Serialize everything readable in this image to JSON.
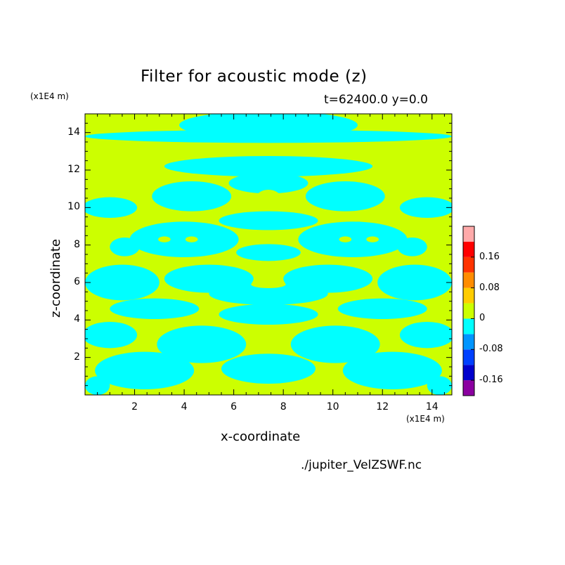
{
  "chart_data": {
    "type": "heatmap",
    "title": "Filter for acoustic mode (z)",
    "subtitle": "t=62400.0 y=0.0",
    "xlabel": "x-coordinate",
    "ylabel": "z-coordinate",
    "x_unit": "(x1E4 m)",
    "y_unit": "(x1E4 m)",
    "source_file": "./jupiter_VelZSWF.nc",
    "xlim": [
      0,
      14.8
    ],
    "ylim": [
      0,
      15
    ],
    "x_ticks": [
      2,
      4,
      6,
      8,
      10,
      12,
      14
    ],
    "y_ticks": [
      2,
      4,
      6,
      8,
      10,
      12,
      14
    ],
    "x_tick_labels": [
      "2",
      "4",
      "6",
      "8",
      "10",
      "12",
      "14"
    ],
    "y_tick_labels": [
      "2",
      "4",
      "6",
      "8",
      "10",
      "12",
      "14"
    ],
    "grid": false,
    "symmetry": "mirror about x=7.4",
    "colorbar": {
      "levels": [
        {
          "range": [
            -0.2,
            -0.16
          ],
          "color": "#8b00a0"
        },
        {
          "range": [
            -0.16,
            -0.12
          ],
          "color": "#0000cc"
        },
        {
          "range": [
            -0.12,
            -0.08
          ],
          "color": "#0040ff"
        },
        {
          "range": [
            -0.08,
            -0.04
          ],
          "color": "#0095ff"
        },
        {
          "range": [
            -0.04,
            0
          ],
          "color": "#00ffff"
        },
        {
          "range": [
            0,
            0.04
          ],
          "color": "#ccff00"
        },
        {
          "range": [
            0.04,
            0.08
          ],
          "color": "#ffcc00"
        },
        {
          "range": [
            0.08,
            0.12
          ],
          "color": "#ff8c00"
        },
        {
          "range": [
            0.12,
            0.16
          ],
          "color": "#ff3300"
        },
        {
          "range": [
            0.16,
            0.2
          ],
          "color": "#ff0000"
        },
        {
          "range": [
            0.2,
            0.24
          ],
          "color": "#ffaaaa"
        }
      ],
      "tick_labels": [
        "0.16",
        "0.08",
        "0",
        "-0.08",
        "-0.16"
      ],
      "tick_values": [
        0.16,
        0.08,
        0,
        -0.08,
        -0.16
      ],
      "placement": "right"
    },
    "negative_regions_cyan": [
      {
        "x": 7.4,
        "z": 13.8,
        "rx": 7.4,
        "rz": 0.35
      },
      {
        "x": 7.4,
        "z": 14.4,
        "rx": 3.6,
        "rz": 0.75
      },
      {
        "x": 7.4,
        "z": 12.2,
        "rx": 4.2,
        "rz": 0.55
      },
      {
        "x": 7.4,
        "z": 11.3,
        "rx": 1.6,
        "rz": 0.55
      },
      {
        "x": 4.3,
        "z": 10.6,
        "rx": 1.6,
        "rz": 0.8
      },
      {
        "x": 10.5,
        "z": 10.6,
        "rx": 1.6,
        "rz": 0.8
      },
      {
        "x": 1.0,
        "z": 10.0,
        "rx": 1.1,
        "rz": 0.55
      },
      {
        "x": 13.8,
        "z": 10.0,
        "rx": 1.1,
        "rz": 0.55
      },
      {
        "x": 7.4,
        "z": 9.3,
        "rx": 2.0,
        "rz": 0.5
      },
      {
        "x": 4.0,
        "z": 8.3,
        "rx": 2.2,
        "rz": 0.95
      },
      {
        "x": 10.8,
        "z": 8.3,
        "rx": 2.2,
        "rz": 0.95
      },
      {
        "x": 1.6,
        "z": 7.9,
        "rx": 0.6,
        "rz": 0.5
      },
      {
        "x": 13.2,
        "z": 7.9,
        "rx": 0.6,
        "rz": 0.5
      },
      {
        "x": 7.4,
        "z": 7.6,
        "rx": 1.3,
        "rz": 0.45
      },
      {
        "x": 1.5,
        "z": 6.0,
        "rx": 1.5,
        "rz": 0.95
      },
      {
        "x": 13.3,
        "z": 6.0,
        "rx": 1.5,
        "rz": 0.95
      },
      {
        "x": 5.0,
        "z": 6.2,
        "rx": 1.8,
        "rz": 0.75
      },
      {
        "x": 9.8,
        "z": 6.2,
        "rx": 1.8,
        "rz": 0.75
      },
      {
        "x": 7.4,
        "z": 5.4,
        "rx": 2.4,
        "rz": 0.6
      },
      {
        "x": 7.4,
        "z": 4.3,
        "rx": 2.0,
        "rz": 0.55
      },
      {
        "x": 2.8,
        "z": 4.6,
        "rx": 1.8,
        "rz": 0.55
      },
      {
        "x": 12.0,
        "z": 4.6,
        "rx": 1.8,
        "rz": 0.55
      },
      {
        "x": 1.0,
        "z": 3.2,
        "rx": 1.1,
        "rz": 0.7
      },
      {
        "x": 13.8,
        "z": 3.2,
        "rx": 1.1,
        "rz": 0.7
      },
      {
        "x": 4.7,
        "z": 2.7,
        "rx": 1.8,
        "rz": 1.0
      },
      {
        "x": 10.1,
        "z": 2.7,
        "rx": 1.8,
        "rz": 1.0
      },
      {
        "x": 7.4,
        "z": 1.4,
        "rx": 1.9,
        "rz": 0.8
      },
      {
        "x": 2.4,
        "z": 1.3,
        "rx": 2.0,
        "rz": 1.0
      },
      {
        "x": 12.4,
        "z": 1.3,
        "rx": 2.0,
        "rz": 1.0
      },
      {
        "x": 0.5,
        "z": 0.5,
        "rx": 0.5,
        "rz": 0.5
      },
      {
        "x": 14.3,
        "z": 0.5,
        "rx": 0.5,
        "rz": 0.5
      }
    ],
    "positive_islands_yellow": [
      {
        "x": 7.4,
        "z": 10.5,
        "rx": 0.5,
        "rz": 0.45
      },
      {
        "x": 3.2,
        "z": 8.3,
        "rx": 0.25,
        "rz": 0.16
      },
      {
        "x": 4.3,
        "z": 8.3,
        "rx": 0.25,
        "rz": 0.16
      },
      {
        "x": 10.5,
        "z": 8.3,
        "rx": 0.25,
        "rz": 0.16
      },
      {
        "x": 11.6,
        "z": 8.3,
        "rx": 0.25,
        "rz": 0.16
      },
      {
        "x": 7.4,
        "z": 5.9,
        "rx": 0.7,
        "rz": 0.2
      },
      {
        "x": 7.4,
        "z": 3.3,
        "rx": 0.8,
        "rz": 0.4
      }
    ]
  }
}
